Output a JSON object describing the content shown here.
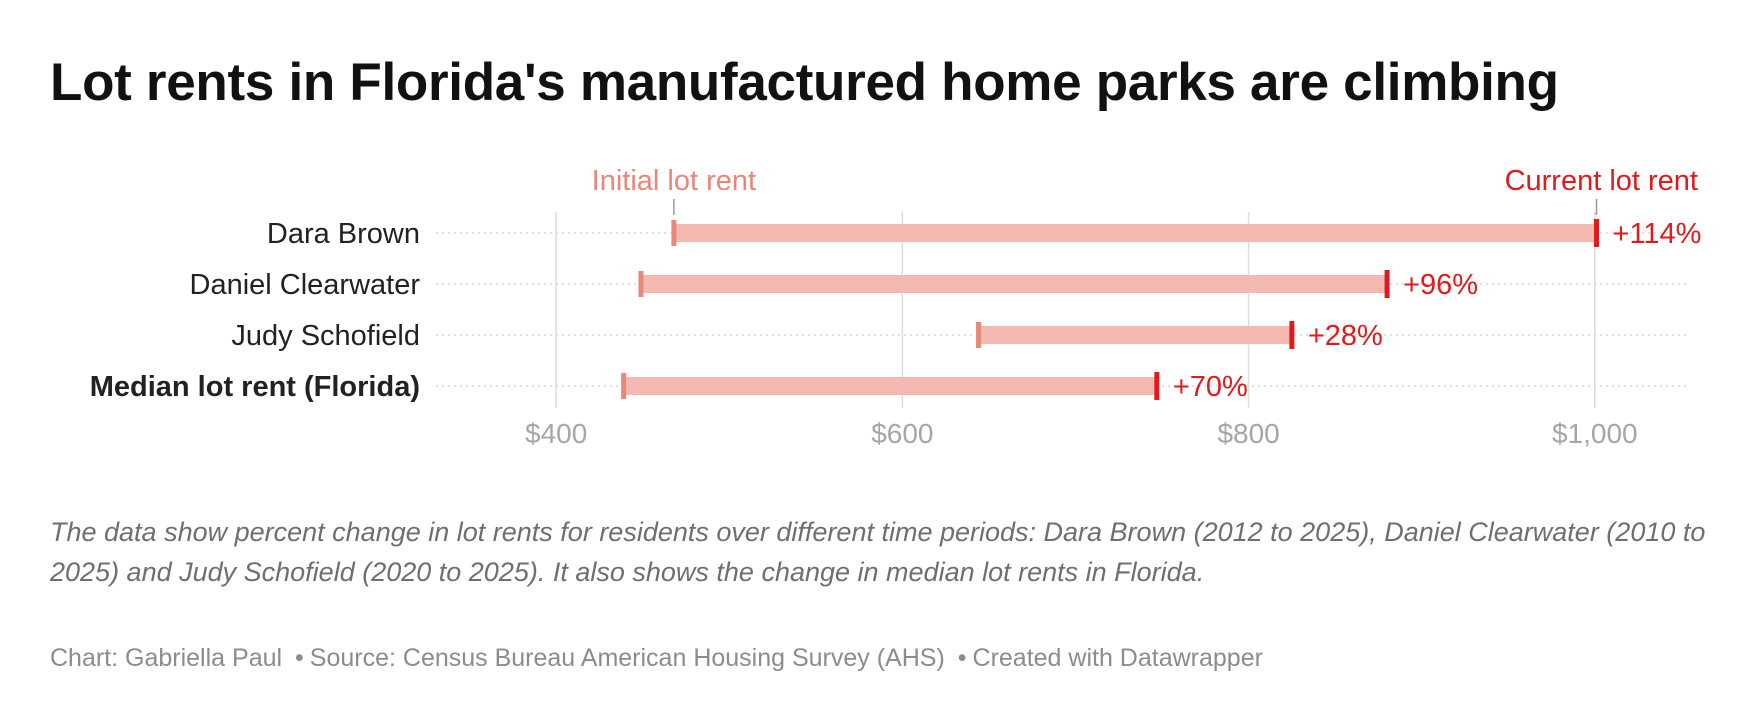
{
  "title": "Lot rents in Florida's manufactured home parks are climbing",
  "description": "The data show percent change in lot rents for residents over different time periods: Dara Brown (2012 to 2025), Daniel Clearwater (2010 to 2025) and Judy Schofield (2020 to 2025). It also shows the change in median lot rents in Florida.",
  "credits": {
    "chart": "Chart: Gabriella Paul",
    "source": "Source: Census Bureau American Housing Survey (AHS)",
    "created": "Created with Datawrapper",
    "separator": "•"
  },
  "colors": {
    "initial": "#e8877a",
    "current": "#e31a1c",
    "bar": "#f4b9b0",
    "grid": "#dddddd",
    "tick_text": "#a6a6a6",
    "label_text": "#222222"
  },
  "chart_data": {
    "type": "range-bar",
    "legend": {
      "initial": "Initial lot rent",
      "current": "Current lot rent"
    },
    "xlim": [
      330,
      1055
    ],
    "x_ticks": [
      400,
      600,
      800,
      1000
    ],
    "x_tick_labels": [
      "$400",
      "$600",
      "$800",
      "$1,000"
    ],
    "grid": "vertical",
    "rows": [
      {
        "name": "Dara Brown",
        "initial": 468,
        "current": 1001,
        "change": "+114%",
        "bold": false
      },
      {
        "name": "Daniel Clearwater",
        "initial": 449,
        "current": 880,
        "change": "+96%",
        "bold": false
      },
      {
        "name": "Judy Schofield",
        "initial": 644,
        "current": 825,
        "change": "+28%",
        "bold": false
      },
      {
        "name": "Median lot rent (Florida)",
        "initial": 439,
        "current": 747,
        "change": "+70%",
        "bold": true
      }
    ]
  }
}
